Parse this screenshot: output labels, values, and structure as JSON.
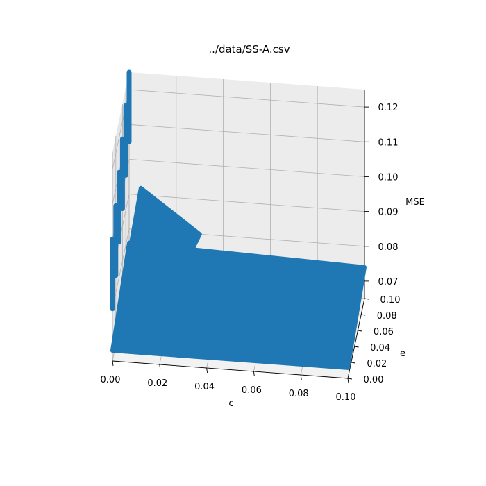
{
  "chart_data": {
    "type": "scatter",
    "projection": "3d",
    "title": "../data/SS-A.csv",
    "xlabel": "c",
    "ylabel": "e",
    "zlabel": "MSE",
    "xlim": [
      0,
      0.1
    ],
    "ylim": [
      0,
      0.1
    ],
    "zlim": [
      0.065,
      0.125
    ],
    "x_ticks": [
      "0.00",
      "0.02",
      "0.04",
      "0.06",
      "0.08",
      "0.10"
    ],
    "y_ticks": [
      "0.00",
      "0.02",
      "0.04",
      "0.06",
      "0.08",
      "0.10"
    ],
    "z_ticks": [
      "0.07",
      "0.08",
      "0.09",
      "0.10",
      "0.11",
      "0.12"
    ],
    "grid": true,
    "marker_color": "#1f77b4",
    "pane_color": "#f2f2f2",
    "description_points": {
      "surface_corners": [
        {
          "c": 0.0,
          "e": 0.0,
          "mse": 0.068
        },
        {
          "c": 0.1,
          "e": 0.0,
          "mse": 0.068
        },
        {
          "c": 0.1,
          "e": 0.1,
          "mse": 0.074
        },
        {
          "c": 0.0,
          "e": 0.1,
          "mse": 0.076
        }
      ],
      "ridge_peak": {
        "c": 0.005,
        "e": 0.1,
        "mse": 0.092
      },
      "streaks_at_c0": [
        {
          "e": 0.0,
          "mse_low": 0.08,
          "mse_high": 0.1
        },
        {
          "e": 0.02,
          "mse_low": 0.085,
          "mse_high": 0.105
        },
        {
          "e": 0.04,
          "mse_low": 0.09,
          "mse_high": 0.11
        },
        {
          "e": 0.06,
          "mse_low": 0.095,
          "mse_high": 0.115
        },
        {
          "e": 0.08,
          "mse_low": 0.1,
          "mse_high": 0.12
        },
        {
          "e": 0.1,
          "mse_low": 0.105,
          "mse_high": 0.125
        }
      ]
    }
  }
}
